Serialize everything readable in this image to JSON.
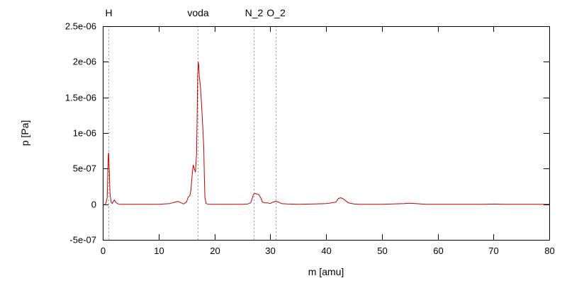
{
  "chart_data": {
    "type": "line",
    "title": "",
    "xlabel": "m [amu]",
    "ylabel": "p [Pa]",
    "xlim": [
      0,
      80
    ],
    "ylim": [
      -5e-07,
      2.5e-06
    ],
    "grid": false,
    "line_color": "#c00000",
    "x_ticks": [
      0,
      10,
      20,
      30,
      40,
      50,
      60,
      70,
      80
    ],
    "x_tick_labels": [
      "0",
      "10",
      "20",
      "30",
      "40",
      "50",
      "60",
      "70",
      "80"
    ],
    "y_ticks": [
      -5e-07,
      0,
      5e-07,
      1e-06,
      1.5e-06,
      2e-06,
      2.5e-06
    ],
    "y_tick_labels": [
      "-5e-07",
      "0",
      "5e-07",
      "1e-06",
      "1.5e-06",
      "2e-06",
      "2.5e-06"
    ],
    "markers": [
      {
        "label": "H",
        "x": 1
      },
      {
        "label": "voda",
        "x": 17
      },
      {
        "label": "N_2",
        "x": 27
      },
      {
        "label": "O_2",
        "x": 31
      }
    ],
    "series": [
      {
        "values": [
          [
            0,
            0
          ],
          [
            0.3,
            -1e-08
          ],
          [
            0.6,
            2e-08
          ],
          [
            0.8,
            1e-07
          ],
          [
            0.9,
            4.5e-07
          ],
          [
            1.0,
            7e-07
          ],
          [
            1.05,
            7.2e-07
          ],
          [
            1.15,
            5e-07
          ],
          [
            1.3,
            1.5e-07
          ],
          [
            1.5,
            3e-08
          ],
          [
            1.7,
            1e-08
          ],
          [
            1.9,
            4e-08
          ],
          [
            2.1,
            6e-08
          ],
          [
            2.3,
            3e-08
          ],
          [
            2.6,
            1e-08
          ],
          [
            3,
            0
          ],
          [
            5,
            0
          ],
          [
            8,
            0
          ],
          [
            10,
            0
          ],
          [
            11,
            5e-09
          ],
          [
            12,
            1e-08
          ],
          [
            13,
            3e-08
          ],
          [
            13.5,
            4e-08
          ],
          [
            14,
            2e-08
          ],
          [
            14.5,
            5e-09
          ],
          [
            15,
            3e-08
          ],
          [
            15.3,
            1e-07
          ],
          [
            15.6,
            1.2e-07
          ],
          [
            15.8,
            2e-07
          ],
          [
            16.0,
            4e-07
          ],
          [
            16.2,
            5.5e-07
          ],
          [
            16.4,
            5e-07
          ],
          [
            16.6,
            4.5e-07
          ],
          [
            16.8,
            7e-07
          ],
          [
            16.9,
            1.2e-06
          ],
          [
            17.0,
            1.8e-06
          ],
          [
            17.1,
            2e-06
          ],
          [
            17.2,
            1.95e-06
          ],
          [
            17.3,
            1.8e-06
          ],
          [
            17.5,
            1.65e-06
          ],
          [
            17.7,
            1.4e-06
          ],
          [
            17.9,
            1.1e-06
          ],
          [
            18.1,
            8e-07
          ],
          [
            18.2,
            4e-07
          ],
          [
            18.3,
            1e-07
          ],
          [
            18.5,
            1e-08
          ],
          [
            19,
            0
          ],
          [
            22,
            0
          ],
          [
            25,
            0
          ],
          [
            26,
            5e-09
          ],
          [
            26.5,
            2e-08
          ],
          [
            26.8,
            9e-08
          ],
          [
            27.0,
            1.4e-07
          ],
          [
            27.3,
            1.5e-07
          ],
          [
            27.6,
            1.45e-07
          ],
          [
            28.0,
            1.3e-07
          ],
          [
            28.3,
            9e-08
          ],
          [
            28.6,
            3e-08
          ],
          [
            29,
            2e-08
          ],
          [
            29.5,
            2e-08
          ],
          [
            30,
            1e-08
          ],
          [
            30.5,
            3e-08
          ],
          [
            31,
            4e-08
          ],
          [
            31.5,
            3e-08
          ],
          [
            32,
            1e-08
          ],
          [
            33,
            5e-09
          ],
          [
            35,
            0
          ],
          [
            38,
            5e-09
          ],
          [
            40,
            1e-08
          ],
          [
            41,
            2e-08
          ],
          [
            41.8,
            3e-08
          ],
          [
            42.2,
            8e-08
          ],
          [
            42.6,
            9e-08
          ],
          [
            43.0,
            8e-08
          ],
          [
            43.5,
            5e-08
          ],
          [
            44,
            2e-08
          ],
          [
            45,
            5e-09
          ],
          [
            46,
            0
          ],
          [
            50,
            0
          ],
          [
            52,
            5e-09
          ],
          [
            54,
            1e-08
          ],
          [
            55,
            1.5e-08
          ],
          [
            56,
            1e-08
          ],
          [
            58,
            0
          ],
          [
            62,
            0
          ],
          [
            65,
            0
          ],
          [
            68,
            0
          ],
          [
            70,
            3e-09
          ],
          [
            72,
            0
          ],
          [
            75,
            0
          ],
          [
            78,
            0
          ],
          [
            80,
            0
          ]
        ]
      }
    ]
  }
}
